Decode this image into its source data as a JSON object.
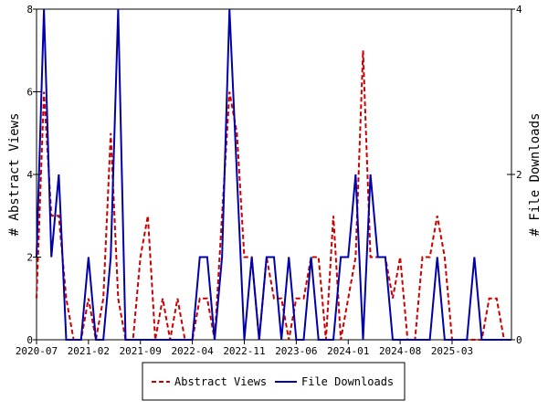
{
  "chart_data": {
    "type": "line",
    "x": [
      "2020-07",
      "2020-08",
      "2020-09",
      "2020-10",
      "2020-11",
      "2020-12",
      "2021-01",
      "2021-02",
      "2021-03",
      "2021-04",
      "2021-05",
      "2021-06",
      "2021-07",
      "2021-08",
      "2021-09",
      "2021-10",
      "2021-11",
      "2021-12",
      "2022-01",
      "2022-02",
      "2022-03",
      "2022-04",
      "2022-05",
      "2022-06",
      "2022-07",
      "2022-08",
      "2022-09",
      "2022-10",
      "2022-11",
      "2022-12",
      "2023-01",
      "2023-02",
      "2023-03",
      "2023-04",
      "2023-05",
      "2023-06",
      "2023-07",
      "2023-08",
      "2023-09",
      "2023-10",
      "2023-11",
      "2023-12",
      "2024-01",
      "2024-02",
      "2024-03",
      "2024-04",
      "2024-05",
      "2024-06",
      "2024-07",
      "2024-08",
      "2024-09",
      "2024-10",
      "2024-11",
      "2024-12",
      "2025-01",
      "2025-02",
      "2025-03",
      "2025-04",
      "2025-05",
      "2025-06",
      "2025-07",
      "2025-08",
      "2025-09",
      "2025-10",
      "2025-11"
    ],
    "x_tick_labels": [
      "2020-07",
      "2021-02",
      "2021-09",
      "2022-04",
      "2022-11",
      "2023-06",
      "2024-01",
      "2024-08",
      "2025-03"
    ],
    "series": [
      {
        "name": "Abstract Views",
        "axis": "left",
        "color": "#cc0000",
        "style": "dashed",
        "values": [
          1,
          6,
          3,
          3,
          1,
          0,
          0,
          1,
          0,
          1,
          5,
          1,
          0,
          0,
          2,
          3,
          0,
          1,
          0,
          1,
          0,
          0,
          1,
          1,
          0,
          3,
          6,
          5,
          2,
          2,
          0,
          2,
          1,
          1,
          0,
          1,
          1,
          2,
          2,
          0,
          3,
          0,
          1,
          2,
          7,
          2,
          2,
          2,
          1,
          2,
          0,
          0,
          2,
          2,
          3,
          2,
          0,
          0,
          0,
          0,
          0,
          1,
          1,
          0,
          0
        ]
      },
      {
        "name": "File Downloads",
        "axis": "right",
        "color": "#0000aa",
        "style": "solid",
        "values": [
          1,
          4,
          1,
          2,
          0,
          0,
          0,
          1,
          0,
          0,
          1,
          4,
          0,
          0,
          0,
          0,
          0,
          0,
          0,
          0,
          0,
          0,
          1,
          1,
          0,
          1,
          4,
          2,
          0,
          1,
          0,
          1,
          1,
          0,
          1,
          0,
          0,
          1,
          0,
          0,
          0,
          1,
          1,
          2,
          0,
          2,
          1,
          1,
          0,
          0,
          0,
          0,
          0,
          0,
          1,
          0,
          0,
          0,
          0,
          1,
          0,
          0,
          0,
          0,
          0
        ]
      }
    ],
    "ylabel": "# Abstract Views",
    "y2label": "# File Downloads",
    "ylim": [
      0,
      8
    ],
    "y2lim": [
      0,
      4
    ],
    "y_ticks": [
      "0",
      "2",
      "4",
      "6",
      "8"
    ],
    "y2_ticks": [
      "0",
      "2",
      "4"
    ],
    "grid": false,
    "legend_placement": "bottom-center"
  }
}
